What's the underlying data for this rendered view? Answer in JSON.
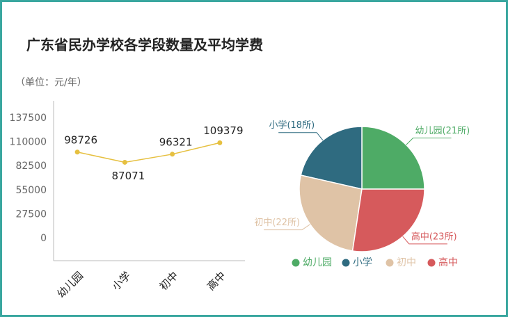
{
  "title": "广东省民办学校各学段数量及平均学费",
  "chart_data": [
    {
      "type": "line",
      "y_label": "（单位：元/年）",
      "categories": [
        "幼儿园",
        "小学",
        "初中",
        "高中"
      ],
      "values": [
        98726,
        87071,
        96321,
        109379
      ],
      "color": "#e6c040",
      "ylim": [
        -27500,
        165000
      ],
      "yticks": [
        0,
        27500,
        55000,
        82500,
        110000,
        137500
      ],
      "grid": false
    },
    {
      "type": "pie",
      "categories": [
        "幼儿园",
        "小学",
        "初中",
        "高中"
      ],
      "values": [
        21,
        18,
        22,
        23
      ],
      "value_labels": [
        "幼儿园(21所)",
        "小学(18所)",
        "初中(22所)",
        "高中(23所)"
      ],
      "colors": [
        "#4eab66",
        "#2f6b80",
        "#dfc3a6",
        "#d65a5c"
      ],
      "legend": "bottom"
    }
  ]
}
